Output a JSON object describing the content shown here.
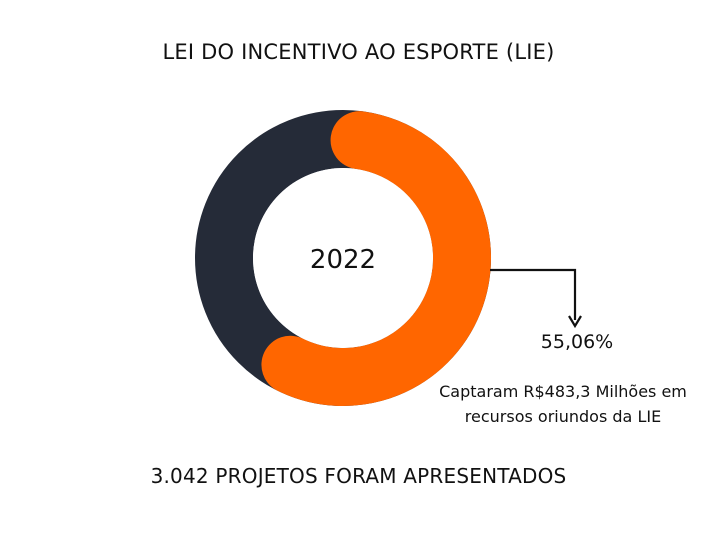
{
  "title": "LEI DO INCENTIVO AO ESPORTE (LIE)",
  "footer": "3.042 PROJETOS FORAM APRESENTADOS",
  "chart_data": {
    "type": "pie",
    "style": "donut",
    "center_label": "2022",
    "slices": [
      {
        "value": 55.06,
        "label": "55,06%",
        "color": "#ff6600"
      },
      {
        "value": 44.94,
        "color": "#252b38"
      }
    ],
    "annotation": {
      "value_label": "55,06%",
      "lines": [
        "Captaram R$483,3 Milhões em",
        "recursos oriundos da LIE"
      ]
    }
  }
}
